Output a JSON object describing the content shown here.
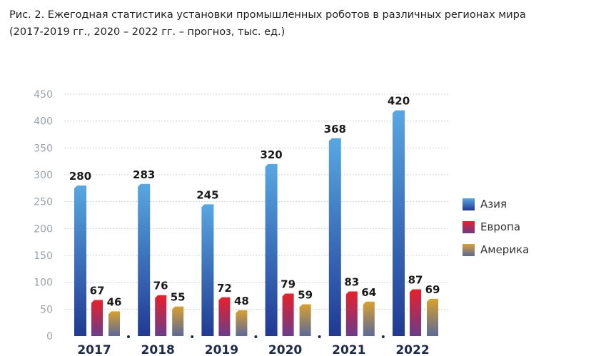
{
  "title_line1": "Рис. 2. Ежегодная статистика установки промышленных роботов в различных регионах мира",
  "title_line2": "(2017-2019 гг., 2020 – 2022 гг. – прогноз, тыс. ед.)",
  "chart_data": {
    "type": "bar",
    "categories": [
      "2017",
      "2018",
      "2019",
      "2020",
      "2021",
      "2022"
    ],
    "series": [
      {
        "name": "Азия",
        "values": [
          280,
          283,
          245,
          320,
          368,
          420
        ]
      },
      {
        "name": "Европа",
        "values": [
          67,
          76,
          72,
          79,
          83,
          87
        ]
      },
      {
        "name": "Америка",
        "values": [
          46,
          55,
          48,
          59,
          64,
          69
        ]
      }
    ],
    "ylim": [
      0,
      450
    ],
    "yticks": [
      "0",
      "50",
      "100",
      "150",
      "200",
      "250",
      "300",
      "350",
      "400",
      "450"
    ],
    "grid": "horizontal dashed",
    "legend": "right",
    "colors": {
      "asia": [
        "#1f3a93",
        "#57a7e3"
      ],
      "europe": [
        "#6a3c8c",
        "#e8202a"
      ],
      "america": [
        "#5a6a9a",
        "#d9a02c"
      ]
    }
  }
}
